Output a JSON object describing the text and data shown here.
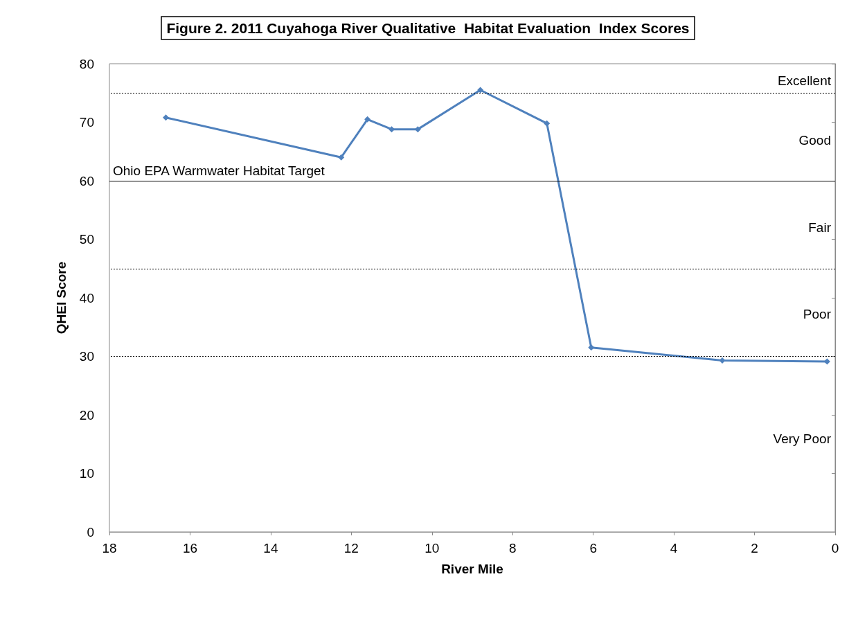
{
  "chart_data": {
    "type": "line",
    "title": "Figure 2. 2011 Cuyahoga River Qualitative  Habitat Evaluation  Index Scores",
    "xlabel": "River Mile",
    "ylabel": "QHEI Score",
    "x": [
      16.6,
      12.25,
      11.6,
      11.0,
      10.35,
      8.8,
      7.15,
      6.05,
      2.8,
      0.2
    ],
    "series": [
      {
        "color": "#4f81bd",
        "values": [
          70.8,
          64,
          70.5,
          68.8,
          68.8,
          75.5,
          69.8,
          31.5,
          29.3,
          29.1
        ]
      }
    ],
    "xlim": [
      18,
      0
    ],
    "xticks": [
      18,
      16,
      14,
      12,
      10,
      8,
      6,
      4,
      2,
      0
    ],
    "ylim": [
      0,
      80
    ],
    "yticks": [
      0,
      10,
      20,
      30,
      40,
      50,
      60,
      70,
      80
    ],
    "grid": false,
    "marker": "diamond",
    "line_style": "solid",
    "ref_lines": [
      {
        "axis": "y",
        "value": 75,
        "line_style": "dotted"
      },
      {
        "axis": "y",
        "value": 60,
        "label": "Ohio EPA Warmwater Habitat Target",
        "line_style": "solid"
      },
      {
        "axis": "y",
        "value": 45,
        "line_style": "dotted"
      },
      {
        "axis": "y",
        "value": 30,
        "line_style": "dotted"
      }
    ],
    "annotations": [
      "Excellent",
      "Good",
      "Fair",
      "Poor",
      "Very Poor"
    ]
  }
}
